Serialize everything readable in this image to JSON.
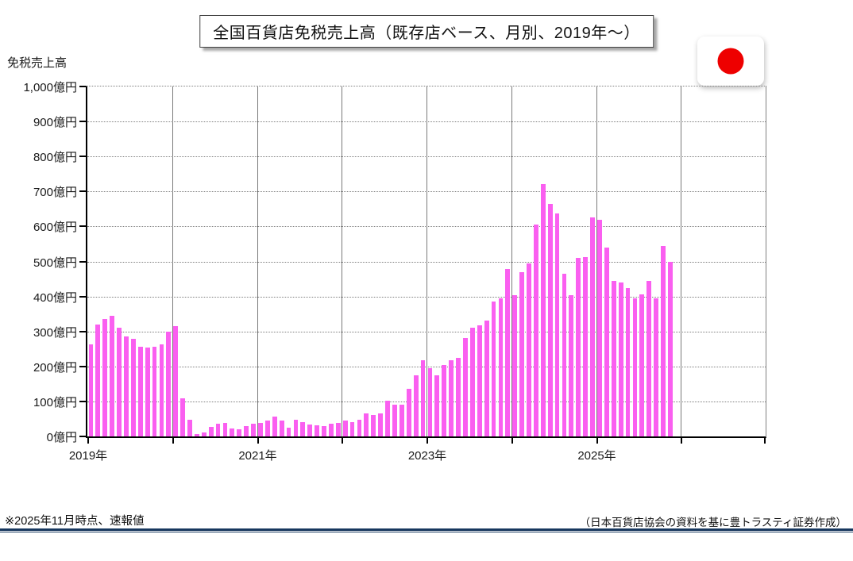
{
  "title": "全国百貨店免税売上高（既存店ベース、月別、2019年～）",
  "footer": {
    "note": "※2025年11月時点、速報値",
    "source": "（日本百貨店協会の資料を基に豊トラスティ証券作成）"
  },
  "flag": {
    "label": "japan-flag",
    "sun_color": "#ee0000",
    "card_color": "#ffffff"
  },
  "colors": {
    "bar": "#fa5ff0",
    "grid": "#7f7f7f",
    "axis": "#000000",
    "footer_rule": "#17375E"
  },
  "chart_data": {
    "type": "bar",
    "title": "全国百貨店免税売上高（既存店ベース、月別、2019年～）",
    "ylabel": "免税売上高",
    "unit": "億円",
    "ylim": [
      0,
      1000
    ],
    "ytick_step": 100,
    "ytick_labels": [
      "0億円",
      "100億円",
      "200億円",
      "300億円",
      "400億円",
      "500億円",
      "600億円",
      "700億円",
      "800億円",
      "900億円",
      "1,000億円"
    ],
    "grid": "horizontal-dotted, vertical-yearly-solid",
    "legend": "none",
    "x_axis_span_years": 8,
    "x_first_year": 2019,
    "xtick_labels": [
      {
        "label": "2019年",
        "year_offset": 0
      },
      {
        "label": "2021年",
        "year_offset": 2
      },
      {
        "label": "2023年",
        "year_offset": 4
      },
      {
        "label": "2025年",
        "year_offset": 6
      }
    ],
    "series_name": "免税売上高",
    "years": [
      {
        "year": 2019,
        "values": [
          262,
          320,
          335,
          345,
          310,
          285,
          280,
          256,
          253,
          256,
          263,
          300
        ]
      },
      {
        "year": 2020,
        "values": [
          315,
          110,
          48,
          7,
          11,
          28,
          37,
          39,
          22,
          20,
          30,
          37
        ]
      },
      {
        "year": 2021,
        "values": [
          38,
          45,
          57,
          46,
          26,
          48,
          40,
          35,
          32,
          30,
          36,
          38
        ]
      },
      {
        "year": 2022,
        "values": [
          45,
          41,
          48,
          66,
          61,
          65,
          102,
          91,
          91,
          136,
          175,
          217
        ]
      },
      {
        "year": 2023,
        "values": [
          196,
          174,
          204,
          217,
          225,
          281,
          311,
          318,
          330,
          385,
          394,
          478
        ]
      },
      {
        "year": 2024,
        "values": [
          403,
          470,
          495,
          605,
          720,
          665,
          637,
          464,
          403,
          510,
          513,
          626
        ]
      },
      {
        "year": 2025,
        "values": [
          620,
          540,
          445,
          440,
          425,
          395,
          405,
          444,
          395,
          545,
          500
        ]
      }
    ]
  }
}
